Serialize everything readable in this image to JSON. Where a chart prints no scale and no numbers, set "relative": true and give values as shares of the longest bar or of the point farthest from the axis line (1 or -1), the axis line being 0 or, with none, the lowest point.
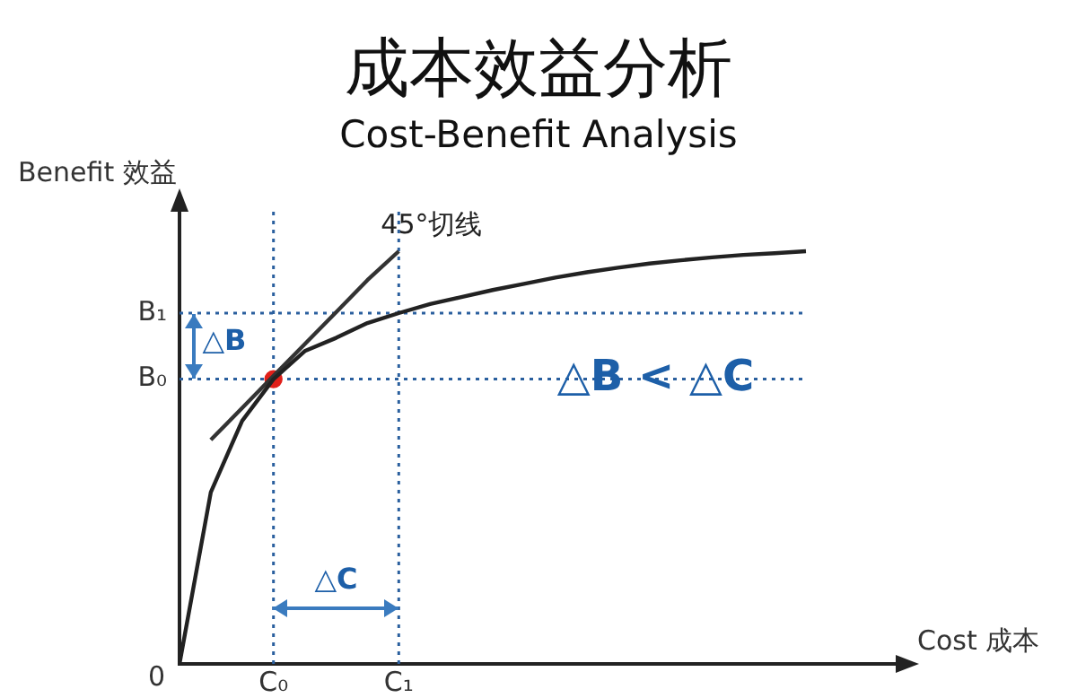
{
  "chart_data": {
    "type": "line",
    "title": "成本效益分析",
    "subtitle": "Cost-Benefit Analysis",
    "xlabel": "Cost 成本",
    "ylabel": "Benefit 效益",
    "relative": true,
    "categories": [
      null,
      null,
      null,
      "C₀",
      null,
      null,
      null,
      "C₁",
      null,
      null,
      null,
      null,
      null,
      null,
      null,
      null,
      null,
      null,
      null,
      null,
      null
    ],
    "series": [
      {
        "type": "line",
        "color": "#222222",
        "marker": "none",
        "values": [
          0,
          0.416,
          0.589,
          0.69,
          0.758,
          0.79,
          0.826,
          0.85,
          0.872,
          0.889,
          0.906,
          0.921,
          0.936,
          0.949,
          0.96,
          0.97,
          0.978,
          0.985,
          0.991,
          0.995,
          1
        ]
      },
      {
        "type": "line",
        "name": "45°切线",
        "color": "#333333",
        "marker": "none",
        "values": [
          null,
          0.543,
          0.62,
          0.698,
          0.775,
          0.852,
          0.93,
          1.0,
          null,
          null,
          null,
          null,
          null,
          null,
          null,
          null,
          null,
          null,
          null,
          null,
          null
        ]
      },
      {
        "type": "scatter",
        "color": "#e0201a",
        "marker": "circle",
        "values": [
          null,
          null,
          null,
          0.69,
          null,
          null,
          null,
          null,
          null,
          null,
          null,
          null,
          null,
          null,
          null,
          null,
          null,
          null,
          null,
          null,
          null
        ]
      }
    ],
    "ref_lines": [
      {
        "axis": "x",
        "value": "C₀",
        "label": null,
        "color": "#2a5f9e",
        "line_style": "dotted"
      },
      {
        "axis": "x",
        "value": "C₁",
        "label": null,
        "color": "#2a5f9e",
        "line_style": "dotted"
      },
      {
        "axis": "y",
        "value": 0.69,
        "label": "B₀",
        "color": "#2a5f9e",
        "line_style": "dotted"
      },
      {
        "axis": "y",
        "value": 0.85,
        "label": "B₁",
        "color": "#2a5f9e",
        "line_style": "dotted"
      }
    ],
    "annotations": [
      "0",
      "△B",
      "△C",
      "△B < △C"
    ]
  }
}
